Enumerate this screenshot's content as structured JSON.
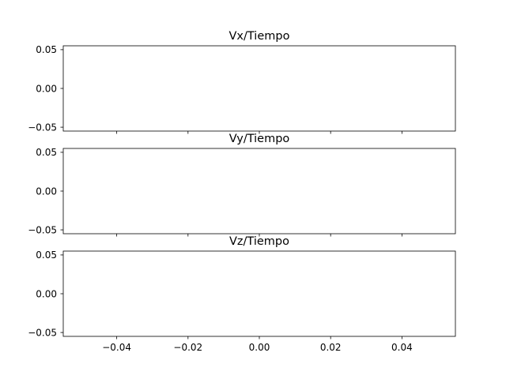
{
  "figure": {
    "background": "#ffffff",
    "frame_color": "#000000"
  },
  "chart_data": [
    {
      "type": "line",
      "title": "Vx/Tiempo",
      "xlabel": "",
      "ylabel": "",
      "x": [],
      "series": [],
      "xlim": [
        -0.055,
        0.055
      ],
      "ylim": [
        -0.055,
        0.055
      ],
      "xticks": [
        -0.04,
        -0.02,
        0.0,
        0.02,
        0.04
      ],
      "xtick_labels": [],
      "yticks": [
        -0.05,
        0.0,
        0.05
      ],
      "ytick_labels": [
        "−0.05",
        "0.00",
        "0.05"
      ],
      "grid": false,
      "legend": "none"
    },
    {
      "type": "line",
      "title": "Vy/Tiempo",
      "xlabel": "",
      "ylabel": "",
      "x": [],
      "series": [],
      "xlim": [
        -0.055,
        0.055
      ],
      "ylim": [
        -0.055,
        0.055
      ],
      "xticks": [
        -0.04,
        -0.02,
        0.0,
        0.02,
        0.04
      ],
      "xtick_labels": [],
      "yticks": [
        -0.05,
        0.0,
        0.05
      ],
      "ytick_labels": [
        "−0.05",
        "0.00",
        "0.05"
      ],
      "grid": false,
      "legend": "none"
    },
    {
      "type": "line",
      "title": "Vz/Tiempo",
      "xlabel": "",
      "ylabel": "",
      "x": [],
      "series": [],
      "xlim": [
        -0.055,
        0.055
      ],
      "ylim": [
        -0.055,
        0.055
      ],
      "xticks": [
        -0.04,
        -0.02,
        0.0,
        0.02,
        0.04
      ],
      "xtick_labels": [
        "−0.04",
        "−0.02",
        "0.00",
        "0.02",
        "0.04"
      ],
      "yticks": [
        -0.05,
        0.0,
        0.05
      ],
      "ytick_labels": [
        "−0.05",
        "0.00",
        "0.05"
      ],
      "grid": false,
      "legend": "none"
    }
  ]
}
